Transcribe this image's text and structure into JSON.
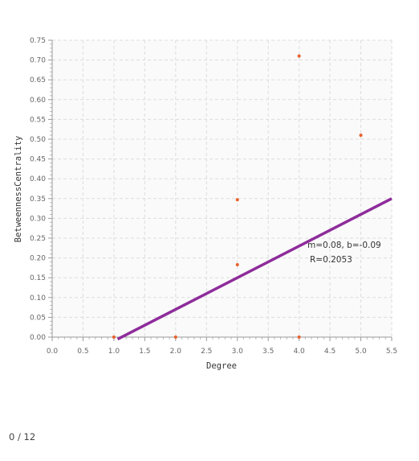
{
  "chart_data": {
    "type": "scatter",
    "title": "",
    "xlabel": "Degree",
    "ylabel": "BetweennessCentrality",
    "xlim": [
      0,
      5.5
    ],
    "ylim": [
      0,
      0.75
    ],
    "x_ticks": [
      "0.0",
      "0.5",
      "1.0",
      "1.5",
      "2.0",
      "2.5",
      "3.0",
      "3.5",
      "4.0",
      "4.5",
      "5.0",
      "5.5"
    ],
    "y_ticks": [
      "0.00",
      "0.05",
      "0.10",
      "0.15",
      "0.20",
      "0.25",
      "0.30",
      "0.35",
      "0.40",
      "0.45",
      "0.50",
      "0.55",
      "0.60",
      "0.65",
      "0.70",
      "0.75"
    ],
    "grid": true,
    "points": [
      {
        "x": 1,
        "y": 0.0
      },
      {
        "x": 2,
        "y": 0.0
      },
      {
        "x": 3,
        "y": 0.347
      },
      {
        "x": 3,
        "y": 0.183
      },
      {
        "x": 4,
        "y": 0.71
      },
      {
        "x": 4,
        "y": 0.0
      },
      {
        "x": 5,
        "y": 0.51
      }
    ],
    "point_color": "#e8602c",
    "fit_line": {
      "m": 0.08,
      "b": -0.09,
      "x_start": 1.06,
      "x_end": 5.5,
      "color": "#8e2c9b"
    },
    "annotation": {
      "line1": "m=0.08, b=-0.09",
      "line2": "R=0.2053"
    }
  },
  "status": {
    "counter": "0 / 12"
  }
}
